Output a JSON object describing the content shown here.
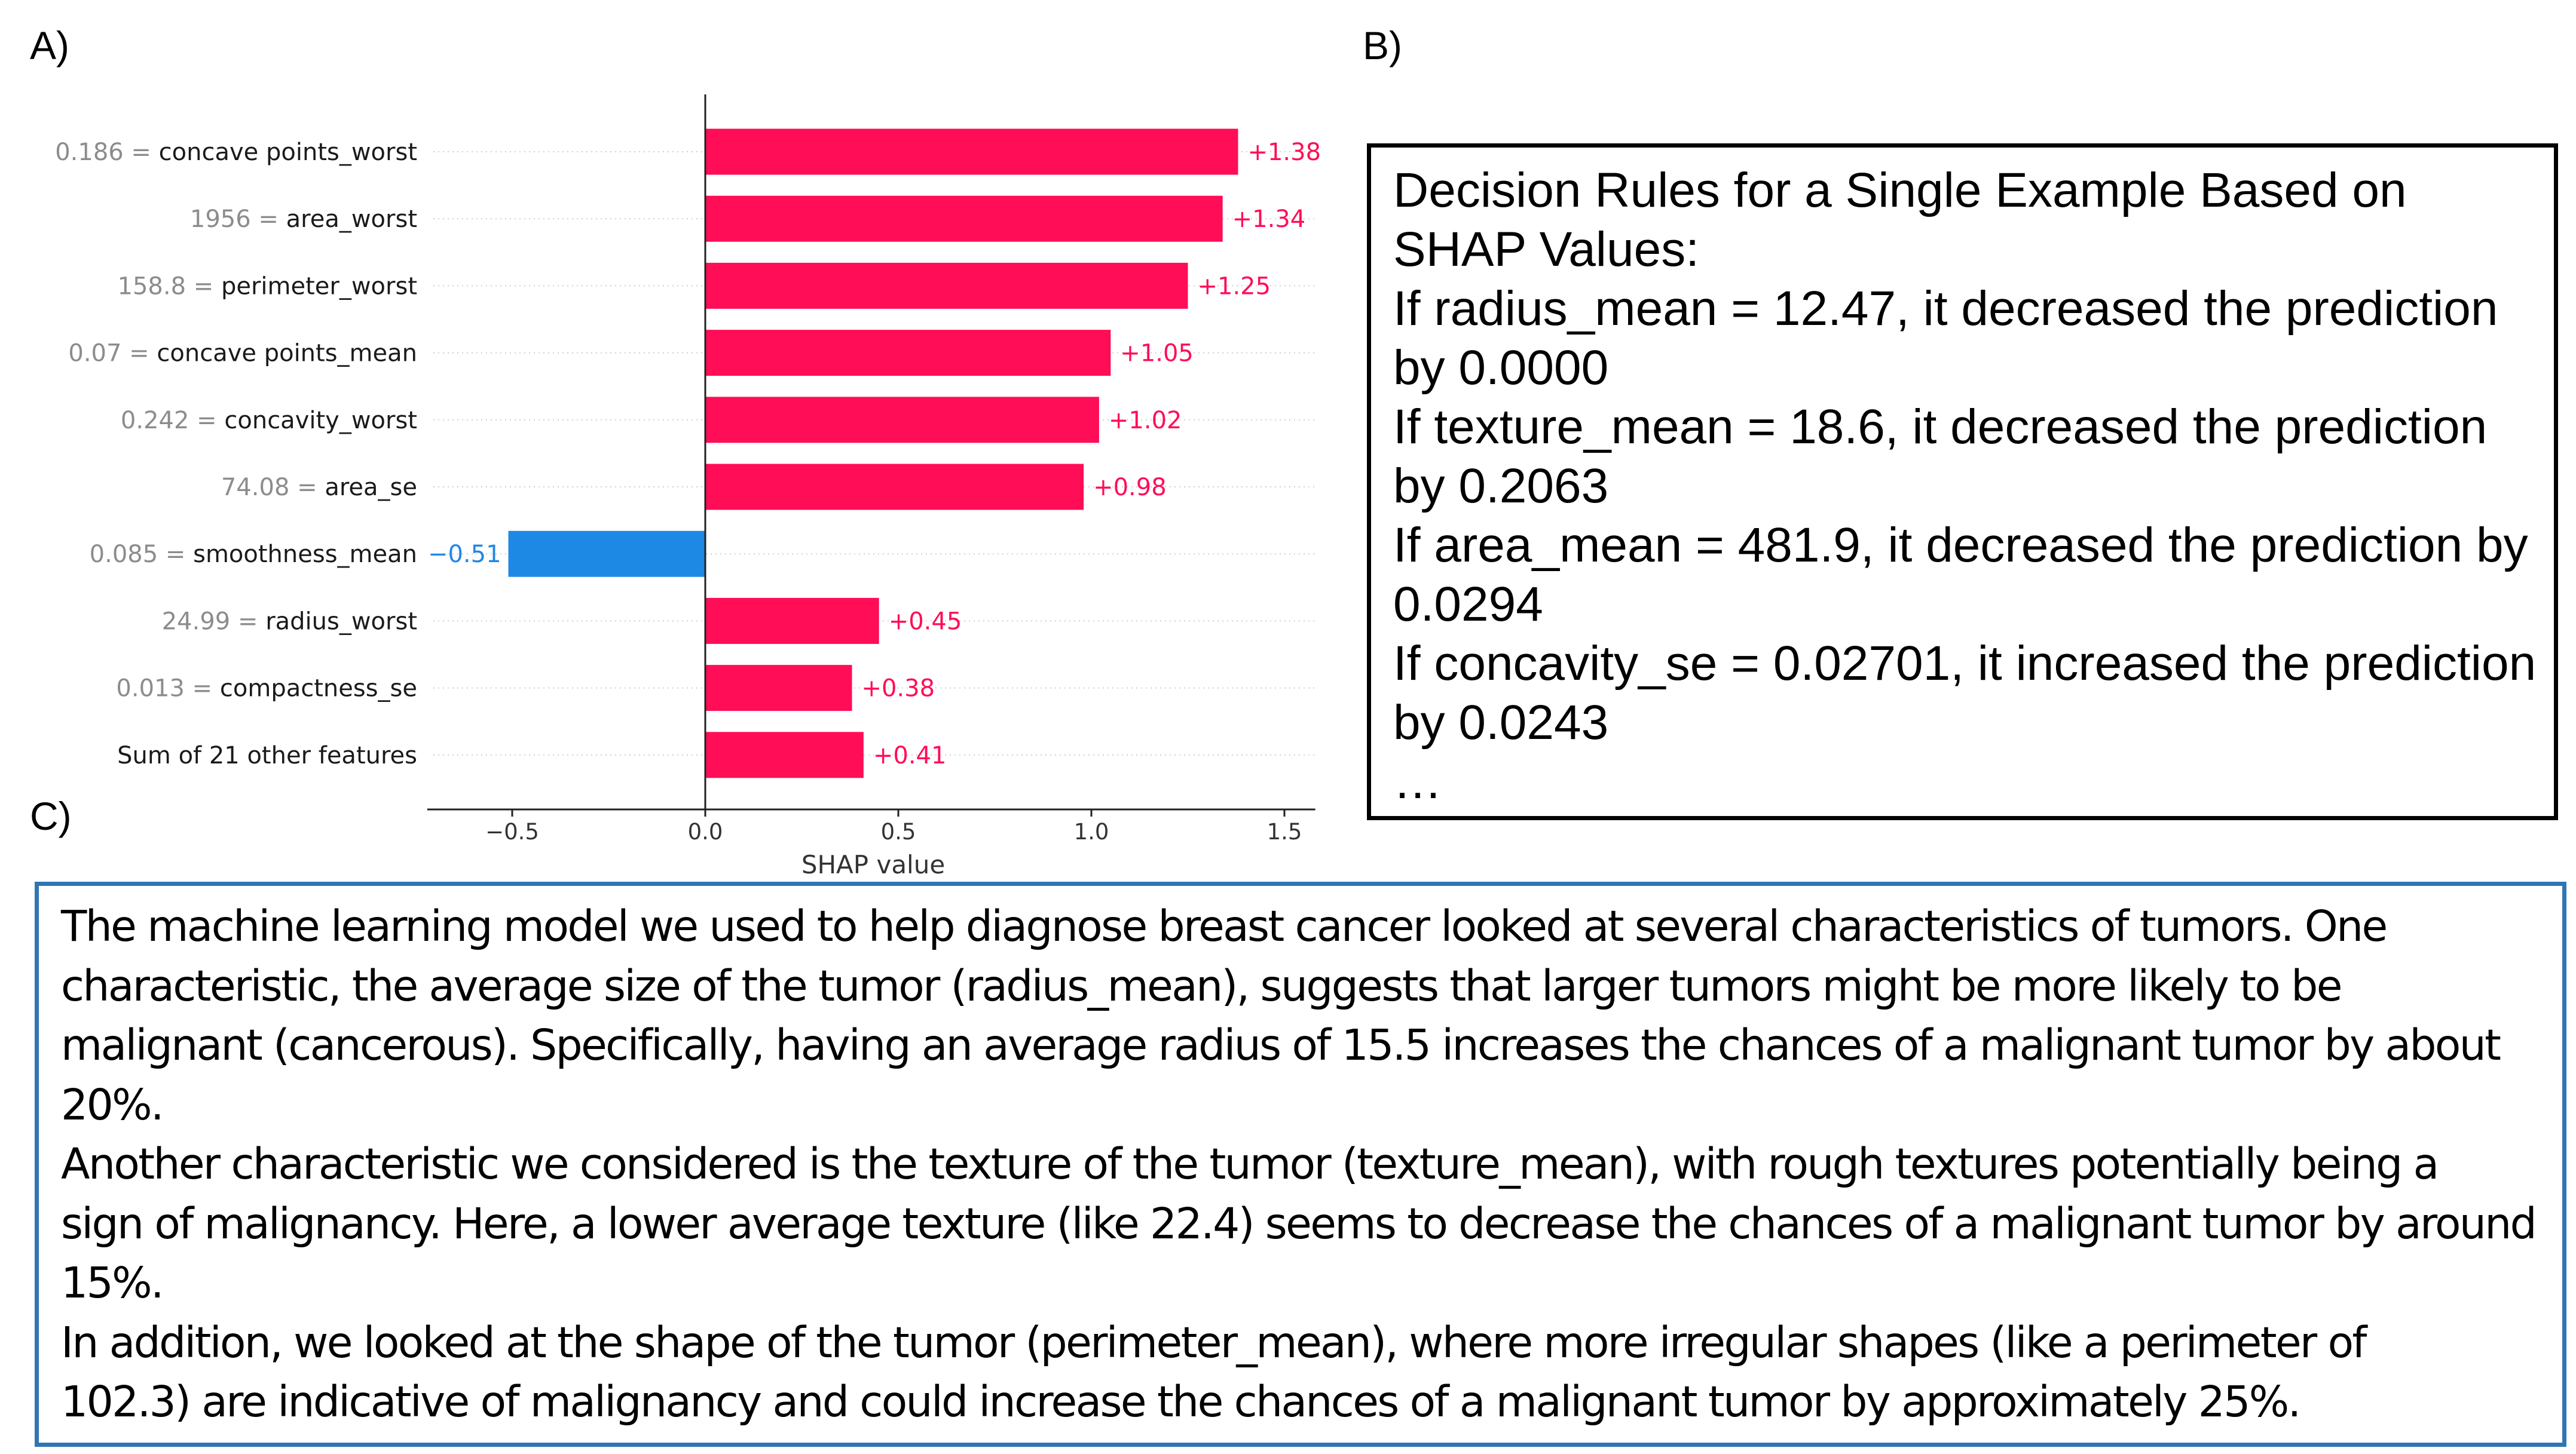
{
  "panels": {
    "a": "A)",
    "b": "B)",
    "c": "C)"
  },
  "chart_data": {
    "type": "bar",
    "orientation": "horizontal",
    "xlabel": "SHAP value",
    "xlim": [
      -0.72,
      1.58
    ],
    "xticks": [
      -0.5,
      0.0,
      0.5,
      1.0,
      1.5
    ],
    "xtick_labels": [
      "−0.5",
      "0.0",
      "0.5",
      "1.0",
      "1.5"
    ],
    "grid": "horizontal-dotted",
    "colors": {
      "positive": "#ff0d57",
      "negative": "#1e88e5",
      "label_gray": "#8c8c8c"
    },
    "rows": [
      {
        "value": "0.186",
        "feature": "concave points_worst",
        "shap": 1.38,
        "shap_label": "+1.38"
      },
      {
        "value": "1956",
        "feature": "area_worst",
        "shap": 1.34,
        "shap_label": "+1.34"
      },
      {
        "value": "158.8",
        "feature": "perimeter_worst",
        "shap": 1.25,
        "shap_label": "+1.25"
      },
      {
        "value": "0.07",
        "feature": "concave points_mean",
        "shap": 1.05,
        "shap_label": "+1.05"
      },
      {
        "value": "0.242",
        "feature": "concavity_worst",
        "shap": 1.02,
        "shap_label": "+1.02"
      },
      {
        "value": "74.08",
        "feature": "area_se",
        "shap": 0.98,
        "shap_label": "+0.98"
      },
      {
        "value": "0.085",
        "feature": "smoothness_mean",
        "shap": -0.51,
        "shap_label": "−0.51"
      },
      {
        "value": "24.99",
        "feature": "radius_worst",
        "shap": 0.45,
        "shap_label": "+0.45"
      },
      {
        "value": "0.013",
        "feature": "compactness_se",
        "shap": 0.38,
        "shap_label": "+0.38"
      },
      {
        "value": "",
        "feature": "Sum of 21 other features",
        "shap": 0.41,
        "shap_label": "+0.41"
      }
    ]
  },
  "decision_rules": {
    "lines": [
      "Decision Rules for a Single Example Based on",
      "SHAP Values:",
      "If radius_mean = 12.47, it decreased the prediction",
      "by 0.0000",
      "If texture_mean = 18.6, it decreased the prediction",
      "by 0.2063",
      "If area_mean = 481.9, it decreased the prediction by",
      "0.0294",
      "If concavity_se = 0.02701, it increased the prediction",
      "by 0.0243",
      "…"
    ]
  },
  "explanation": {
    "lines": [
      "The machine learning model we used to help diagnose breast cancer looked at several characteristics of tumors. One",
      "characteristic, the average size of the tumor (radius_mean), suggests that larger tumors might be more likely to be",
      "malignant (cancerous). Specifically, having an average radius of 15.5 increases the chances of a malignant tumor by about",
      "20%.",
      "Another characteristic we considered is the texture of the tumor (texture_mean), with rough textures potentially being a",
      "sign of malignancy. Here, a lower average texture (like 22.4) seems to decrease the chances of a malignant tumor by around",
      "15%.",
      "In addition, we looked at the shape of the tumor (perimeter_mean), where more irregular shapes (like a perimeter of",
      "102.3) are indicative of malignancy and could increase the chances of a malignant tumor by approximately 25%."
    ]
  }
}
